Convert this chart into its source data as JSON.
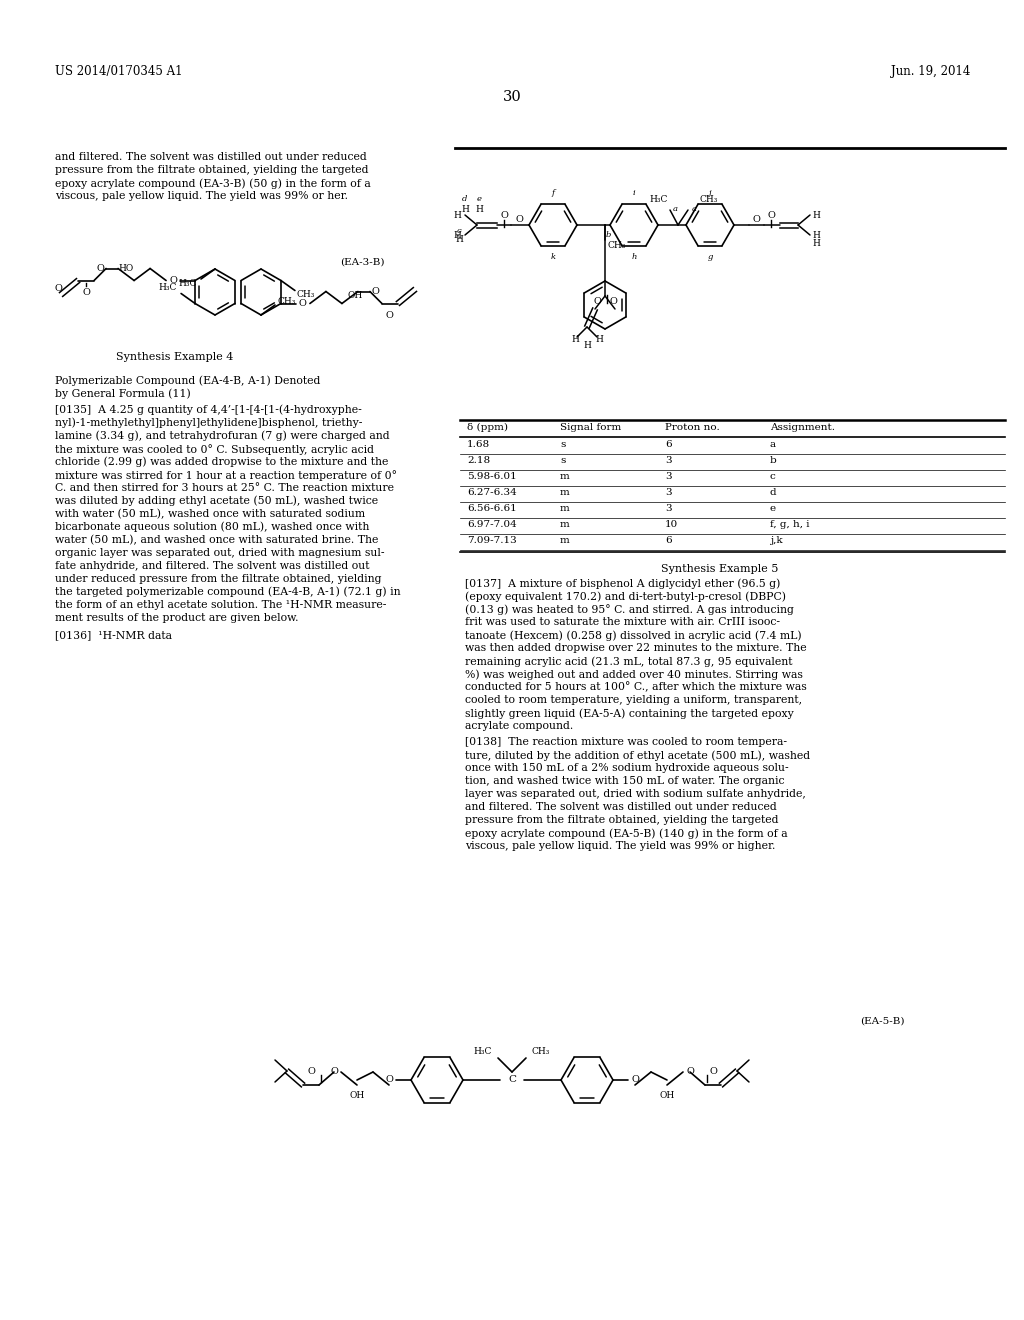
{
  "bg": "#ffffff",
  "header_left": "US 2014/0170345 A1",
  "header_right": "Jun. 19, 2014",
  "page_number": "30",
  "lc_para1": [
    "and filtered. The solvent was distilled out under reduced",
    "pressure from the filtrate obtained, yielding the targeted",
    "epoxy acrylate compound (EA-3-B) (50 g) in the form of a",
    "viscous, pale yellow liquid. The yield was 99% or her."
  ],
  "ea3b_label": "(EA-3-B)",
  "synth4_label": "Synthesis Example 4",
  "synth4_title1": "Polymerizable Compound (EA-4-B, A-1) Denoted",
  "synth4_title2": "by General Formula (11)",
  "para_0135": [
    "[0135]  A 4.25 g quantity of 4,4’-[1-[4-[1-(4-hydroxyphe-",
    "nyl)-1-methylethyl]phenyl]ethylidene]bisphenol, triethy-",
    "lamine (3.34 g), and tetrahydrofuran (7 g) were charged and",
    "the mixture was cooled to 0° C. Subsequently, acrylic acid",
    "chloride (2.99 g) was added dropwise to the mixture and the",
    "mixture was stirred for 1 hour at a reaction temperature of 0°",
    "C. and then stirred for 3 hours at 25° C. The reaction mixture",
    "was diluted by adding ethyl acetate (50 mL), washed twice",
    "with water (50 mL), washed once with saturated sodium",
    "bicarbonate aqueous solution (80 mL), washed once with",
    "water (50 mL), and washed once with saturated brine. The",
    "organic layer was separated out, dried with magnesium sul-",
    "fate anhydride, and filtered. The solvent was distilled out",
    "under reduced pressure from the filtrate obtained, yielding",
    "the targeted polymerizable compound (EA-4-B, A-1) (72.1 g) in",
    "the form of an ethyl acetate solution. The ¹H-NMR measure-",
    "ment results of the product are given below."
  ],
  "para_0136": "[0136]  ¹H-NMR data",
  "synth5_label": "Synthesis Example 5",
  "para_0137": [
    "[0137]  A mixture of bisphenol A diglycidyl ether (96.5 g)",
    "(epoxy equivalent 170.2) and di-tert-butyl-p-cresol (DBPC)",
    "(0.13 g) was heated to 95° C. and stirred. A gas introducing",
    "frit was used to saturate the mixture with air. CrIII isooc-",
    "tanoate (Hexcem) (0.258 g) dissolved in acrylic acid (7.4 mL)",
    "was then added dropwise over 22 minutes to the mixture. The",
    "remaining acrylic acid (21.3 mL, total 87.3 g, 95 equivalent",
    "%) was weighed out and added over 40 minutes. Stirring was",
    "conducted for 5 hours at 100° C., after which the mixture was",
    "cooled to room temperature, yielding a uniform, transparent,",
    "slightly green liquid (EA-5-A) containing the targeted epoxy",
    "acrylate compound."
  ],
  "para_0138": [
    "[0138]  The reaction mixture was cooled to room tempera-",
    "ture, diluted by the addition of ethyl acetate (500 mL), washed",
    "once with 150 mL of a 2% sodium hydroxide aqueous solu-",
    "tion, and washed twice with 150 mL of water. The organic",
    "layer was separated out, dried with sodium sulfate anhydride,",
    "and filtered. The solvent was distilled out under reduced",
    "pressure from the filtrate obtained, yielding the targeted",
    "epoxy acrylate compound (EA-5-B) (140 g) in the form of a",
    "viscous, pale yellow liquid. The yield was 99% or higher."
  ],
  "ea5b_label": "(EA-5-B)",
  "table_headers": [
    "δ (ppm)",
    "Signal form",
    "Proton no.",
    "Assignment."
  ],
  "table_rows": [
    [
      "1.68",
      "s",
      "6",
      "a"
    ],
    [
      "2.18",
      "s",
      "3",
      "b"
    ],
    [
      "5.98-6.01",
      "m",
      "3",
      "c"
    ],
    [
      "6.27-6.34",
      "m",
      "3",
      "d"
    ],
    [
      "6.56-6.61",
      "m",
      "3",
      "e"
    ],
    [
      "6.97-7.04",
      "m",
      "10",
      "f, g, h, i"
    ],
    [
      "7.09-7.13",
      "m",
      "6",
      "j,k"
    ]
  ]
}
